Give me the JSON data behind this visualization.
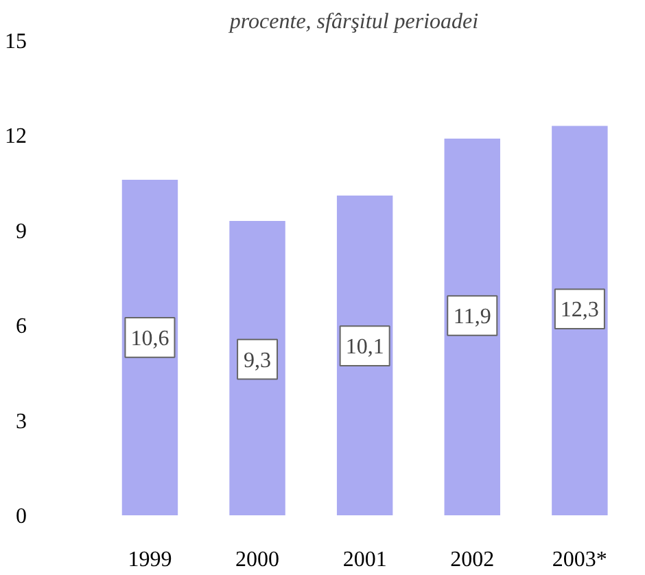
{
  "chart_data": {
    "type": "bar",
    "title": "procente, sfârşitul perioadei",
    "categories": [
      "1999",
      "2000",
      "2001",
      "2002",
      "2003*"
    ],
    "values": [
      10.6,
      9.3,
      10.1,
      11.9,
      12.3
    ],
    "value_labels": [
      "10,6",
      "9,3",
      "10,1",
      "11,9",
      "12,3"
    ],
    "color": "#aaaaf2",
    "ylim": [
      0,
      15
    ],
    "yticks": [
      0,
      3,
      6,
      9,
      12,
      15
    ],
    "grid": false
  }
}
